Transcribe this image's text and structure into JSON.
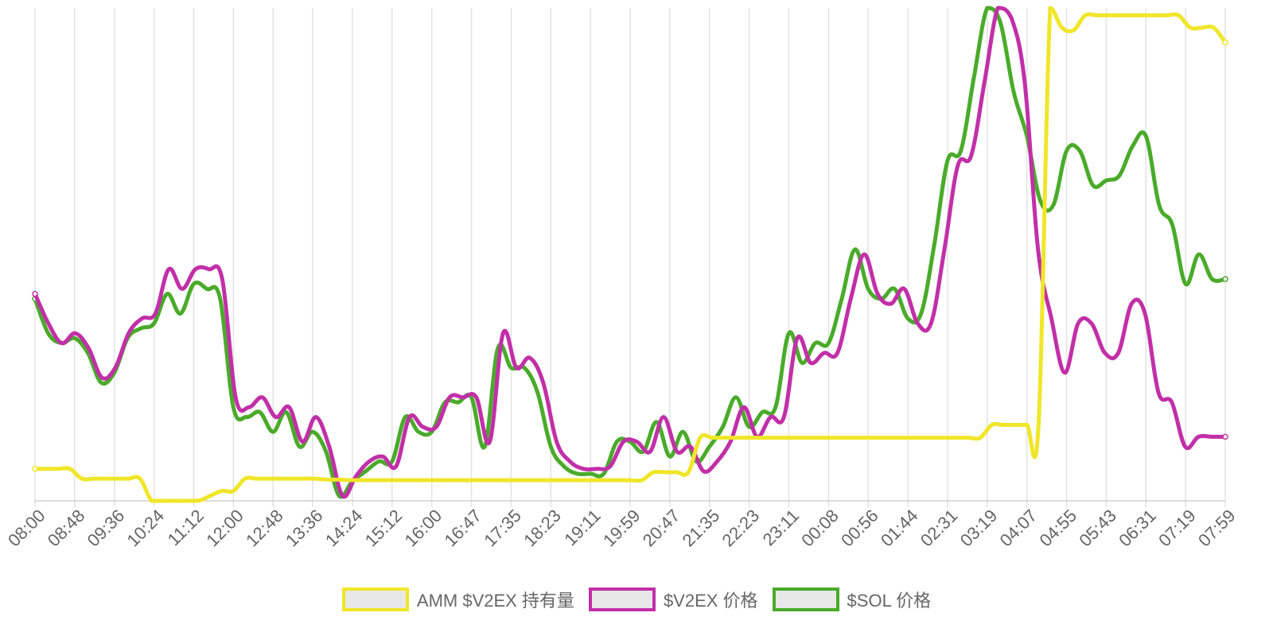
{
  "chart_data": {
    "type": "line",
    "x": [
      "08:00",
      "08:48",
      "09:36",
      "10:24",
      "11:12",
      "12:00",
      "12:48",
      "13:36",
      "14:24",
      "15:12",
      "16:00",
      "16:47",
      "17:35",
      "18:23",
      "19:11",
      "19:59",
      "20:47",
      "21:35",
      "22:23",
      "23:11",
      "00:08",
      "00:56",
      "01:44",
      "02:31",
      "03:19",
      "04:07",
      "04:55",
      "05:43",
      "06:31",
      "07:19",
      "07:59"
    ],
    "ylim": [
      0,
      100
    ],
    "grid": {
      "vertical": true,
      "horizontal": false
    },
    "legend_position": "bottom",
    "series": [
      {
        "name": "AMM $V2EX 持有量",
        "color": "#f0e629",
        "values": [
          [
            0,
            6.5
          ],
          [
            1,
            6.5
          ],
          [
            2,
            6.5
          ],
          [
            3,
            6.5
          ],
          [
            4,
            4.5
          ],
          [
            5,
            4.5
          ],
          [
            6,
            4.5
          ],
          [
            7,
            4.5
          ],
          [
            8,
            4.5
          ],
          [
            9,
            4.5
          ],
          [
            10,
            0
          ],
          [
            11,
            0
          ],
          [
            12,
            0
          ],
          [
            13,
            0
          ],
          [
            14,
            0
          ],
          [
            15,
            1
          ],
          [
            16,
            2
          ],
          [
            17,
            2
          ],
          [
            18,
            4.5
          ],
          [
            19,
            4.5
          ],
          [
            20,
            4.5
          ],
          [
            21,
            4.5
          ],
          [
            22,
            4.5
          ],
          [
            23,
            4.5
          ],
          [
            24,
            4.5
          ],
          [
            25,
            4.3
          ],
          [
            26,
            4.3
          ],
          [
            27,
            4.2
          ],
          [
            28,
            4.2
          ],
          [
            29,
            4.2
          ],
          [
            30,
            4.2
          ],
          [
            31,
            4.2
          ],
          [
            32,
            4.2
          ],
          [
            33,
            4.2
          ],
          [
            34,
            4.2
          ],
          [
            35,
            4.2
          ],
          [
            36,
            4.2
          ],
          [
            37,
            4.2
          ],
          [
            38,
            4.2
          ],
          [
            39,
            4.2
          ],
          [
            40,
            4.2
          ],
          [
            41,
            4.2
          ],
          [
            42,
            4.2
          ],
          [
            43,
            4.2
          ],
          [
            44,
            4.2
          ],
          [
            45,
            4.2
          ],
          [
            46,
            4.2
          ],
          [
            47,
            4.2
          ],
          [
            48,
            4.2
          ],
          [
            49,
            4.2
          ],
          [
            50,
            4.2
          ],
          [
            51,
            4.2
          ],
          [
            52,
            4.2
          ],
          [
            53,
            5.8
          ],
          [
            54,
            5.8
          ],
          [
            55,
            5.8
          ],
          [
            56,
            5.8
          ],
          [
            57,
            12.8
          ],
          [
            58,
            12.8
          ],
          [
            59,
            12.8
          ],
          [
            60,
            12.8
          ],
          [
            61,
            12.8
          ],
          [
            62,
            12.8
          ],
          [
            63,
            12.8
          ],
          [
            64,
            12.8
          ],
          [
            65,
            12.8
          ],
          [
            66,
            12.8
          ],
          [
            67,
            12.8
          ],
          [
            68,
            12.8
          ],
          [
            69,
            12.8
          ],
          [
            70,
            12.8
          ],
          [
            71,
            12.8
          ],
          [
            72,
            12.8
          ],
          [
            73,
            12.8
          ],
          [
            74,
            12.8
          ],
          [
            75,
            12.8
          ],
          [
            76,
            12.8
          ],
          [
            77,
            12.8
          ],
          [
            78,
            12.8
          ],
          [
            79,
            12.8
          ],
          [
            80,
            12.8
          ],
          [
            81,
            12.8
          ],
          [
            82,
            15.4
          ],
          [
            83,
            15.4
          ],
          [
            84,
            15.4
          ],
          [
            85,
            15.4
          ],
          [
            86,
            15.4
          ],
          [
            87,
            100
          ],
          [
            88,
            96
          ],
          [
            89,
            95.5
          ],
          [
            90,
            98.5
          ],
          [
            91,
            98.5
          ],
          [
            92,
            98.5
          ],
          [
            93,
            98.5
          ],
          [
            94,
            98.5
          ],
          [
            95,
            98.5
          ],
          [
            96,
            98.5
          ],
          [
            97,
            98.5
          ],
          [
            98,
            98.5
          ],
          [
            99,
            96
          ],
          [
            100,
            96
          ],
          [
            101,
            96
          ],
          [
            102,
            93
          ]
        ]
      },
      {
        "name": "$V2EX 价格",
        "color": "#c22fa8",
        "values": [
          [
            0,
            42
          ],
          [
            1,
            36
          ],
          [
            2,
            32
          ],
          [
            3,
            34
          ],
          [
            4,
            31
          ],
          [
            5,
            25
          ],
          [
            6,
            27
          ],
          [
            7,
            34
          ],
          [
            8,
            37
          ],
          [
            9,
            38
          ],
          [
            10,
            47
          ],
          [
            11,
            43
          ],
          [
            12,
            47
          ],
          [
            13,
            47
          ],
          [
            14,
            45
          ],
          [
            15,
            21
          ],
          [
            16,
            19
          ],
          [
            17,
            21
          ],
          [
            18,
            17
          ],
          [
            19,
            19
          ],
          [
            20,
            12
          ],
          [
            21,
            17
          ],
          [
            22,
            11
          ],
          [
            23,
            1
          ],
          [
            24,
            5
          ],
          [
            25,
            8
          ],
          [
            26,
            9
          ],
          [
            27,
            7
          ],
          [
            28,
            17
          ],
          [
            29,
            15
          ],
          [
            30,
            15
          ],
          [
            31,
            21
          ],
          [
            32,
            21
          ],
          [
            33,
            21
          ],
          [
            34,
            12
          ],
          [
            35,
            34
          ],
          [
            36,
            27
          ],
          [
            37,
            29
          ],
          [
            38,
            24
          ],
          [
            39,
            12
          ],
          [
            40,
            8
          ],
          [
            41,
            6.5
          ],
          [
            42,
            6.5
          ],
          [
            43,
            7
          ],
          [
            44,
            12
          ],
          [
            45,
            12
          ],
          [
            46,
            10
          ],
          [
            47,
            17
          ],
          [
            48,
            10
          ],
          [
            49,
            11
          ],
          [
            50,
            6
          ],
          [
            51,
            8
          ],
          [
            52,
            12
          ],
          [
            53,
            19
          ],
          [
            54,
            13
          ],
          [
            55,
            17
          ],
          [
            56,
            17
          ],
          [
            57,
            33
          ],
          [
            58,
            28
          ],
          [
            59,
            30
          ],
          [
            60,
            30
          ],
          [
            61,
            41
          ],
          [
            62,
            50
          ],
          [
            63,
            42
          ],
          [
            64,
            40
          ],
          [
            65,
            43
          ],
          [
            66,
            36
          ],
          [
            67,
            36
          ],
          [
            68,
            51
          ],
          [
            69,
            68
          ],
          [
            70,
            70
          ],
          [
            71,
            85
          ],
          [
            72,
            100
          ],
          [
            73,
            98
          ],
          [
            74,
            85
          ],
          [
            75,
            51
          ],
          [
            76,
            37
          ],
          [
            77,
            26
          ],
          [
            78,
            36
          ],
          [
            79,
            36
          ],
          [
            80,
            30
          ],
          [
            81,
            30
          ],
          [
            82,
            40
          ],
          [
            83,
            38
          ],
          [
            84,
            22
          ],
          [
            85,
            20
          ],
          [
            86,
            11
          ],
          [
            87,
            13
          ],
          [
            88,
            13
          ],
          [
            89,
            13
          ]
        ]
      },
      {
        "name": "$SOL 价格",
        "color": "#4aab2a",
        "values": [
          [
            0,
            41
          ],
          [
            1,
            34
          ],
          [
            2,
            32
          ],
          [
            3,
            33
          ],
          [
            4,
            30
          ],
          [
            5,
            24
          ],
          [
            6,
            26
          ],
          [
            7,
            33
          ],
          [
            8,
            35
          ],
          [
            9,
            36
          ],
          [
            10,
            42
          ],
          [
            11,
            38
          ],
          [
            12,
            44
          ],
          [
            13,
            43
          ],
          [
            14,
            41
          ],
          [
            15,
            19
          ],
          [
            16,
            17
          ],
          [
            17,
            18
          ],
          [
            18,
            14
          ],
          [
            19,
            18
          ],
          [
            20,
            11
          ],
          [
            21,
            14
          ],
          [
            22,
            10
          ],
          [
            23,
            1
          ],
          [
            24,
            4
          ],
          [
            25,
            6
          ],
          [
            26,
            8
          ],
          [
            27,
            8
          ],
          [
            28,
            17
          ],
          [
            29,
            14
          ],
          [
            30,
            14
          ],
          [
            31,
            20
          ],
          [
            32,
            20
          ],
          [
            33,
            21
          ],
          [
            34,
            11
          ],
          [
            35,
            31
          ],
          [
            36,
            27
          ],
          [
            37,
            27
          ],
          [
            38,
            22
          ],
          [
            39,
            11
          ],
          [
            40,
            7
          ],
          [
            41,
            5.5
          ],
          [
            42,
            5.5
          ],
          [
            43,
            5.5
          ],
          [
            44,
            12
          ],
          [
            45,
            12
          ],
          [
            46,
            10
          ],
          [
            47,
            16
          ],
          [
            48,
            9
          ],
          [
            49,
            14
          ],
          [
            50,
            8
          ],
          [
            51,
            11
          ],
          [
            52,
            15
          ],
          [
            53,
            21
          ],
          [
            54,
            15
          ],
          [
            55,
            18
          ],
          [
            56,
            19
          ],
          [
            57,
            34
          ],
          [
            58,
            28
          ],
          [
            59,
            32
          ],
          [
            60,
            32
          ],
          [
            61,
            41
          ],
          [
            62,
            51
          ],
          [
            63,
            43
          ],
          [
            64,
            41
          ],
          [
            65,
            43
          ],
          [
            66,
            37
          ],
          [
            67,
            38
          ],
          [
            68,
            52
          ],
          [
            69,
            69
          ],
          [
            70,
            71
          ],
          [
            71,
            86
          ],
          [
            72,
            100
          ],
          [
            73,
            97
          ],
          [
            74,
            83
          ],
          [
            75,
            74
          ],
          [
            76,
            61
          ],
          [
            77,
            60
          ],
          [
            78,
            71
          ],
          [
            79,
            71
          ],
          [
            80,
            64
          ],
          [
            81,
            65
          ],
          [
            82,
            66
          ],
          [
            83,
            72
          ],
          [
            84,
            74
          ],
          [
            85,
            60
          ],
          [
            86,
            56
          ],
          [
            87,
            44
          ],
          [
            88,
            50
          ],
          [
            89,
            45
          ],
          [
            90,
            45
          ]
        ]
      }
    ]
  },
  "legend": {
    "items": [
      {
        "label": "AMM $V2EX 持有量",
        "color": "#f0e629"
      },
      {
        "label": "$V2EX 价格",
        "color": "#c22fa8"
      },
      {
        "label": "$SOL 价格",
        "color": "#4aab2a"
      }
    ]
  }
}
